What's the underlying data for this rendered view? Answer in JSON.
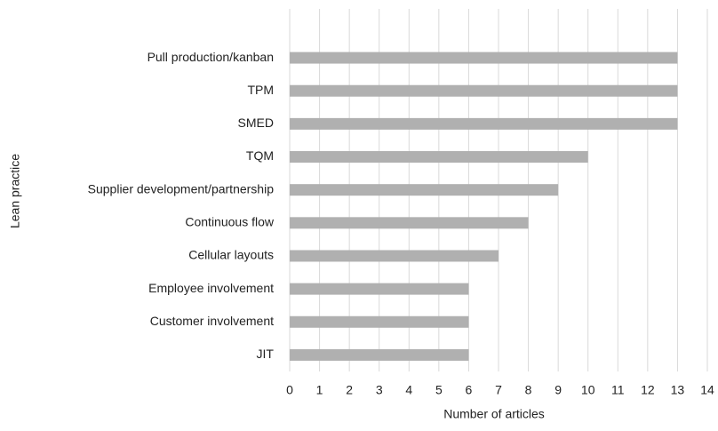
{
  "chart_data": {
    "type": "bar",
    "orientation": "horizontal",
    "categories": [
      "Pull production/kanban",
      "TPM",
      "SMED",
      "TQM",
      "Supplier development/partnership",
      "Continuous flow",
      "Cellular layouts",
      "Employee involvement",
      "Customer involvement",
      "JIT"
    ],
    "values": [
      13,
      13,
      13,
      10,
      9,
      8,
      7,
      6,
      6,
      6
    ],
    "color": "#b0b0b0",
    "xlabel": "Number of articles",
    "ylabel": "Lean practice",
    "xlim": [
      0,
      14
    ],
    "xticks": [
      0,
      1,
      2,
      3,
      4,
      5,
      6,
      7,
      8,
      9,
      10,
      11,
      12,
      13,
      14
    ],
    "grid": true
  }
}
